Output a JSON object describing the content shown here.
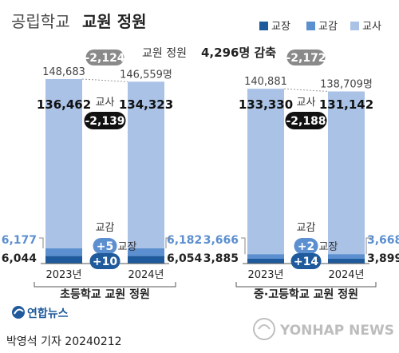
{
  "header": {
    "title_light": "공립학교",
    "title_bold": "교원 정원"
  },
  "legend": [
    {
      "label": "교장",
      "color": "#1f5b9c"
    },
    {
      "label": "교감",
      "color": "#5b8fd0"
    },
    {
      "label": "교사",
      "color": "#a9c2e5"
    }
  ],
  "summary": {
    "label": "교원 정원",
    "value": "4,296명 감축"
  },
  "chart_data": [
    {
      "type": "bar",
      "title": "초등학교 교원 정원",
      "categories": [
        "2023년",
        "2024년"
      ],
      "series": [
        {
          "name": "교장",
          "values": [
            6044,
            6054
          ]
        },
        {
          "name": "교감",
          "values": [
            6177,
            6182
          ]
        },
        {
          "name": "교사",
          "values": [
            136462,
            134323
          ]
        }
      ],
      "totals": [
        148683,
        146559
      ],
      "total_labels": [
        "148,683",
        "146,559명"
      ],
      "teacher_labels": [
        "136,462",
        "134,323"
      ],
      "vp_labels": [
        "6,177",
        "6,182"
      ],
      "p_labels": [
        "6,044",
        "6,054"
      ],
      "diff_total": "-2,124",
      "diff_teacher": "-2,139",
      "diff_vp": "+5",
      "diff_p": "+10",
      "label_teacher": "교사",
      "label_vp": "교감",
      "label_p": "교장"
    },
    {
      "type": "bar",
      "title": "중·고등학교 교원 정원",
      "categories": [
        "2023년",
        "2024년"
      ],
      "series": [
        {
          "name": "교장",
          "values": [
            3885,
            3899
          ]
        },
        {
          "name": "교감",
          "values": [
            3666,
            3668
          ]
        },
        {
          "name": "교사",
          "values": [
            133330,
            131142
          ]
        }
      ],
      "totals": [
        140881,
        138709
      ],
      "total_labels": [
        "140,881",
        "138,709명"
      ],
      "teacher_labels": [
        "133,330",
        "131,142"
      ],
      "vp_labels": [
        "3,666",
        "3,668"
      ],
      "p_labels": [
        "3,885",
        "3,899"
      ],
      "diff_total": "-2,172",
      "diff_teacher": "-2,188",
      "diff_vp": "+2",
      "diff_p": "+14",
      "label_teacher": "교사",
      "label_vp": "교감",
      "label_p": "교장"
    }
  ],
  "footer": {
    "logo": "연합뉴스",
    "credit": "박영석 기자  20240212",
    "watermark": "YONHAP NEWS"
  }
}
